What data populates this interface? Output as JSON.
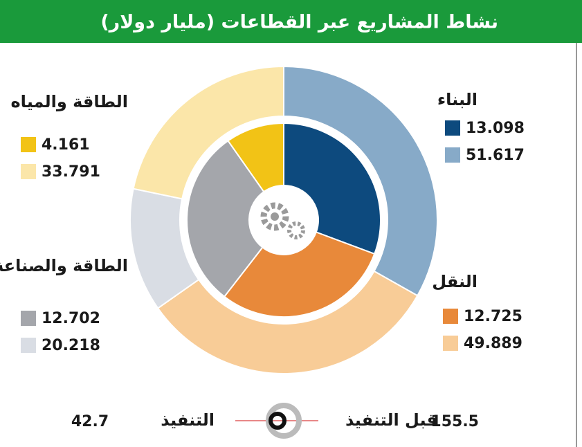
{
  "chart_data": {
    "type": "donut",
    "title": "نشاط المشاريع عبر القطاعات (مليار دولار)",
    "categories": [
      "البناء",
      "النقل",
      "الطاقة والصناعة",
      "الطاقة والمياه"
    ],
    "series": [
      {
        "name": "التنفيذ",
        "ring": "inner",
        "colors": [
          "#0d4a7e",
          "#e8893a",
          "#a4a6ab",
          "#f2c316"
        ],
        "values": [
          13.098,
          12.725,
          12.702,
          4.161
        ]
      },
      {
        "name": "قبل التنفيذ",
        "ring": "outer",
        "colors": [
          "#87aac8",
          "#f8cc97",
          "#d9dde4",
          "#fbe6a9"
        ],
        "values": [
          51.617,
          49.889,
          20.218,
          33.791
        ]
      }
    ],
    "totals": [
      42.7,
      155.5
    ]
  }
}
